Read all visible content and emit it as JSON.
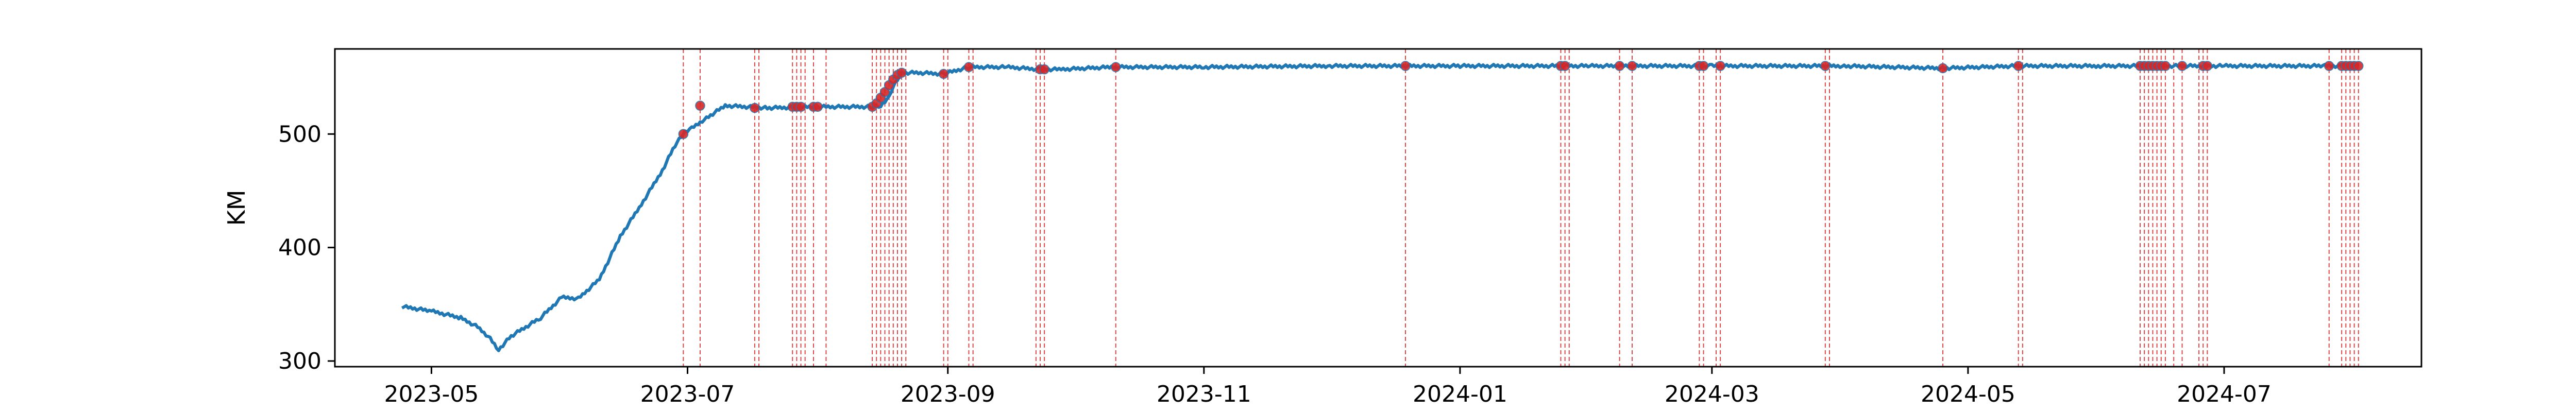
{
  "chart_data": {
    "type": "line",
    "ylabel": "KM",
    "xlabel": "",
    "title": "",
    "ylim": [
      295,
      575
    ],
    "xlim": [
      "2023-04-08",
      "2024-08-17"
    ],
    "grid": false,
    "y_ticks": [
      300,
      400,
      500
    ],
    "x_ticks": [
      "2023-05",
      "2023-07",
      "2023-09",
      "2023-11",
      "2024-01",
      "2024-03",
      "2024-05",
      "2024-07"
    ],
    "series": [
      {
        "color": "#1f77b4",
        "x": [
          "2023-04-24",
          "2023-05-01",
          "2023-05-08",
          "2023-05-12",
          "2023-05-15",
          "2023-05-17",
          "2023-05-20",
          "2023-05-27",
          "2023-06-01",
          "2023-06-05",
          "2023-06-10",
          "2023-06-15",
          "2023-06-20",
          "2023-06-25",
          "2023-06-28",
          "2023-06-30",
          "2023-07-02",
          "2023-07-05",
          "2023-07-10",
          "2023-07-20",
          "2023-08-01",
          "2023-08-14",
          "2023-08-16",
          "2023-08-18",
          "2023-08-19",
          "2023-08-21",
          "2023-08-25",
          "2023-08-31",
          "2023-09-06",
          "2023-09-15",
          "2023-09-23",
          "2023-09-28",
          "2023-10-10",
          "2023-11-01",
          "2023-12-01",
          "2024-01-01",
          "2024-02-01",
          "2024-03-01",
          "2024-04-01",
          "2024-04-25",
          "2024-05-13",
          "2024-06-01",
          "2024-06-15",
          "2024-07-01",
          "2024-07-25",
          "2024-08-01"
        ],
        "y": [
          348,
          344,
          338,
          330,
          320,
          310,
          322,
          338,
          356,
          355,
          372,
          410,
          438,
          468,
          490,
          500,
          505,
          513,
          525,
          523,
          524,
          524,
          524,
          532,
          542,
          554,
          554,
          553,
          559,
          559,
          557,
          557,
          559,
          559,
          560,
          560,
          560,
          560,
          560,
          558,
          560,
          560,
          560,
          560,
          560,
          560
        ]
      }
    ],
    "markers": {
      "color": "#d62728",
      "x": [
        "2023-06-30",
        "2023-07-04",
        "2023-07-17",
        "2023-07-26",
        "2023-07-27",
        "2023-07-28",
        "2023-07-31",
        "2023-08-01",
        "2023-08-14",
        "2023-08-15",
        "2023-08-16",
        "2023-08-17",
        "2023-08-18",
        "2023-08-19",
        "2023-08-20",
        "2023-08-21",
        "2023-08-31",
        "2023-09-06",
        "2023-09-23",
        "2023-09-24",
        "2023-10-11",
        "2023-12-19",
        "2024-01-25",
        "2024-01-26",
        "2024-02-08",
        "2024-02-11",
        "2024-02-27",
        "2024-02-28",
        "2024-03-03",
        "2024-03-28",
        "2024-04-25",
        "2024-05-13",
        "2024-06-11",
        "2024-06-12",
        "2024-06-13",
        "2024-06-14",
        "2024-06-15",
        "2024-06-16",
        "2024-06-17",
        "2024-06-21",
        "2024-06-26",
        "2024-06-27",
        "2024-07-26",
        "2024-07-29",
        "2024-07-30",
        "2024-07-31",
        "2024-08-01",
        "2024-08-02"
      ],
      "y": [
        500,
        525,
        523,
        524,
        524,
        524,
        524,
        524,
        524,
        527,
        532,
        537,
        543,
        548,
        552,
        554,
        553,
        559,
        557,
        557,
        559,
        560,
        560,
        560,
        560,
        560,
        560,
        560,
        560,
        560,
        558,
        560,
        560,
        560,
        560,
        560,
        560,
        560,
        560,
        560,
        560,
        560,
        560,
        560,
        560,
        560,
        560,
        560
      ]
    },
    "vlines": {
      "color": "#d62728",
      "x": [
        "2023-06-30",
        "2023-07-04",
        "2023-07-17",
        "2023-07-18",
        "2023-07-26",
        "2023-07-27",
        "2023-07-28",
        "2023-07-29",
        "2023-07-31",
        "2023-08-03",
        "2023-08-14",
        "2023-08-15",
        "2023-08-16",
        "2023-08-17",
        "2023-08-18",
        "2023-08-19",
        "2023-08-20",
        "2023-08-21",
        "2023-08-22",
        "2023-08-31",
        "2023-09-01",
        "2023-09-06",
        "2023-09-07",
        "2023-09-22",
        "2023-09-23",
        "2023-09-24",
        "2023-10-11",
        "2023-12-19",
        "2024-01-25",
        "2024-01-26",
        "2024-01-27",
        "2024-02-08",
        "2024-02-11",
        "2024-02-27",
        "2024-02-28",
        "2024-03-02",
        "2024-03-03",
        "2024-03-28",
        "2024-03-29",
        "2024-04-25",
        "2024-05-13",
        "2024-05-14",
        "2024-06-11",
        "2024-06-12",
        "2024-06-13",
        "2024-06-14",
        "2024-06-15",
        "2024-06-16",
        "2024-06-17",
        "2024-06-19",
        "2024-06-21",
        "2024-06-25",
        "2024-06-26",
        "2024-06-27",
        "2024-07-26",
        "2024-07-29",
        "2024-07-30",
        "2024-07-31",
        "2024-08-01",
        "2024-08-02"
      ]
    }
  }
}
